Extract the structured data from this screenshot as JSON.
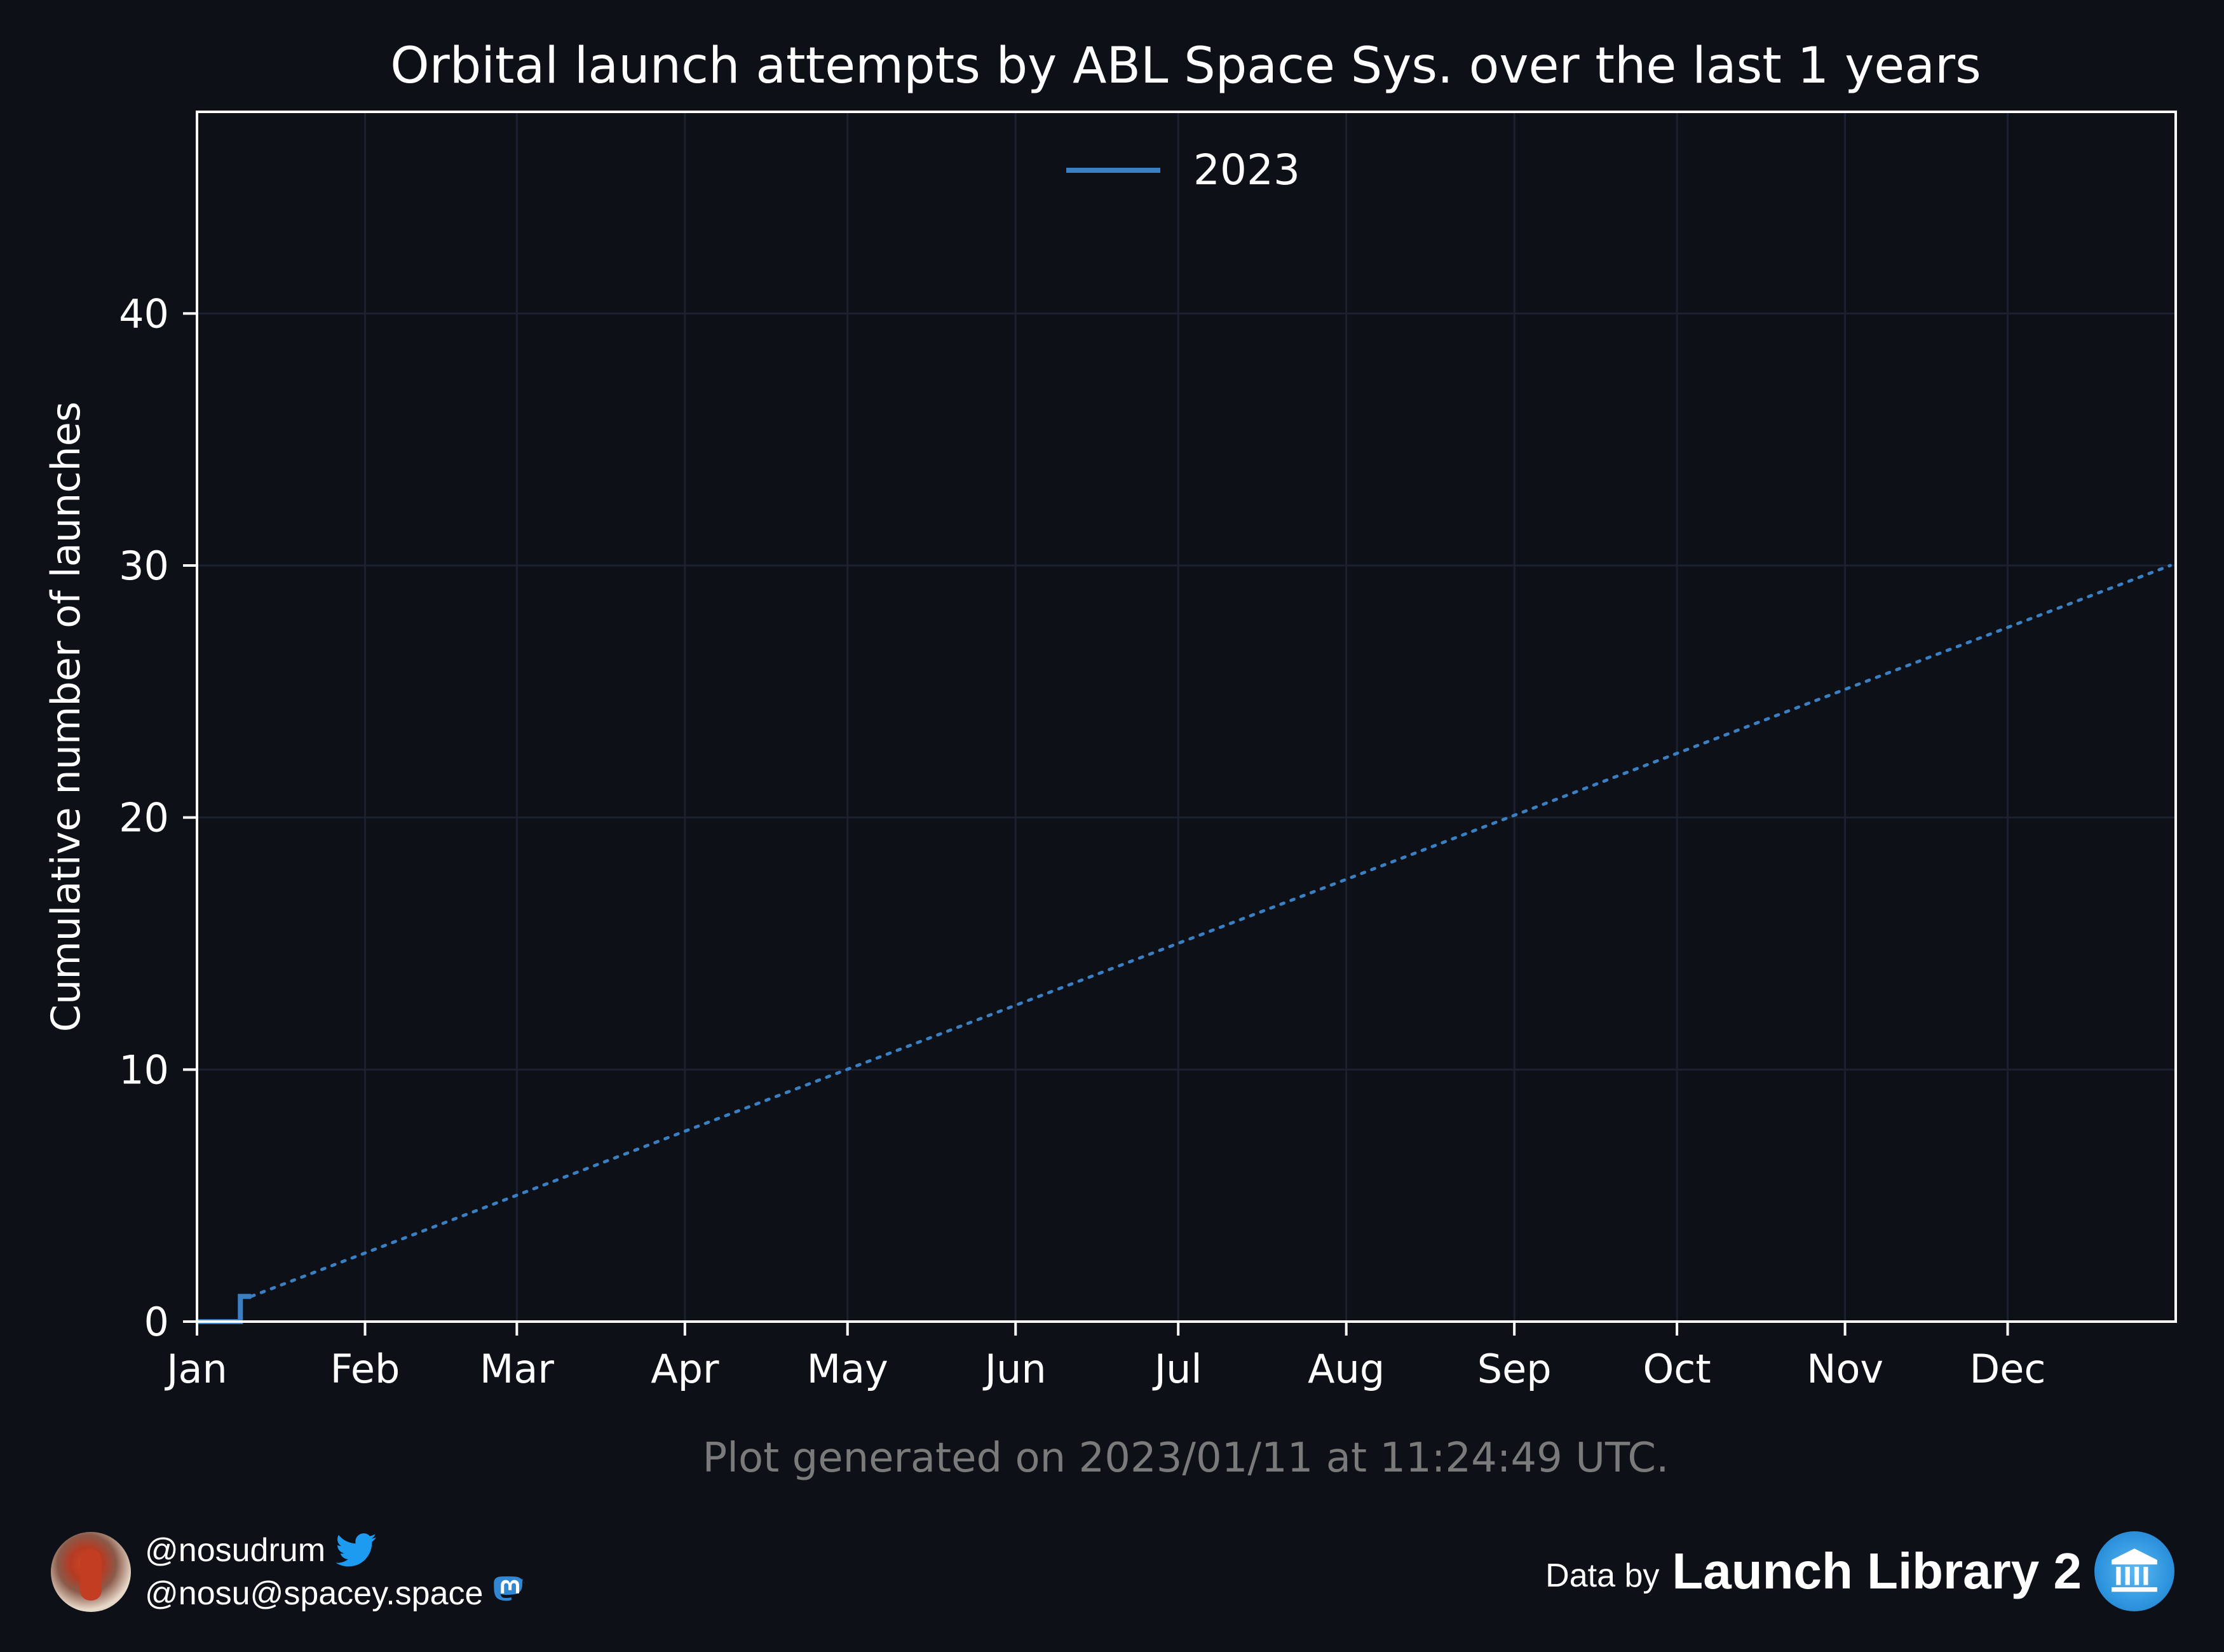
{
  "chart_data": {
    "type": "line",
    "title": "Orbital launch attempts by ABL Space Sys. over the last 1 years",
    "xlabel": "",
    "ylabel": "Cumulative number of launches",
    "x_ticks": [
      "Jan",
      "Feb",
      "Mar",
      "Apr",
      "May",
      "Jun",
      "Jul",
      "Aug",
      "Sep",
      "Oct",
      "Nov",
      "Dec"
    ],
    "x_tick_days": [
      0,
      31,
      59,
      90,
      120,
      151,
      181,
      212,
      243,
      273,
      304,
      334
    ],
    "x_range_days": [
      0,
      365
    ],
    "y_ticks": [
      "0",
      "10",
      "20",
      "30",
      "40"
    ],
    "y_tick_values": [
      0,
      10,
      20,
      30,
      40
    ],
    "ylim": [
      0,
      48
    ],
    "grid": true,
    "legend_position": "top-center",
    "series": [
      {
        "name": "2023",
        "style": "step",
        "color": "#3a7fc1",
        "points": [
          [
            "Jan 1",
            0
          ],
          [
            "Jan 9",
            0
          ],
          [
            "Jan 9",
            1
          ],
          [
            "Jan 11",
            1
          ]
        ]
      },
      {
        "style": "dotted",
        "color": "#3a7fc1",
        "points": [
          [
            "Jan 11",
            1
          ],
          [
            "Dec 31",
            30
          ]
        ]
      }
    ],
    "footnote": "Plot generated on 2023/01/11 at 11:24:49 UTC."
  },
  "credits": {
    "twitter_handle": "@nosudrum",
    "mastodon_handle": "@nosu@spacey.space"
  },
  "attribution": {
    "prefix": "Data by",
    "name": "Launch Library 2"
  },
  "colors": {
    "background": "#0d1017",
    "series": "#3a7fc1",
    "grid": "#1c2130",
    "axes": "#ffffff",
    "footnote": "#7a7a7a"
  },
  "icons": [
    "twitter-icon",
    "mastodon-icon",
    "launch-library-icon",
    "avatar"
  ]
}
